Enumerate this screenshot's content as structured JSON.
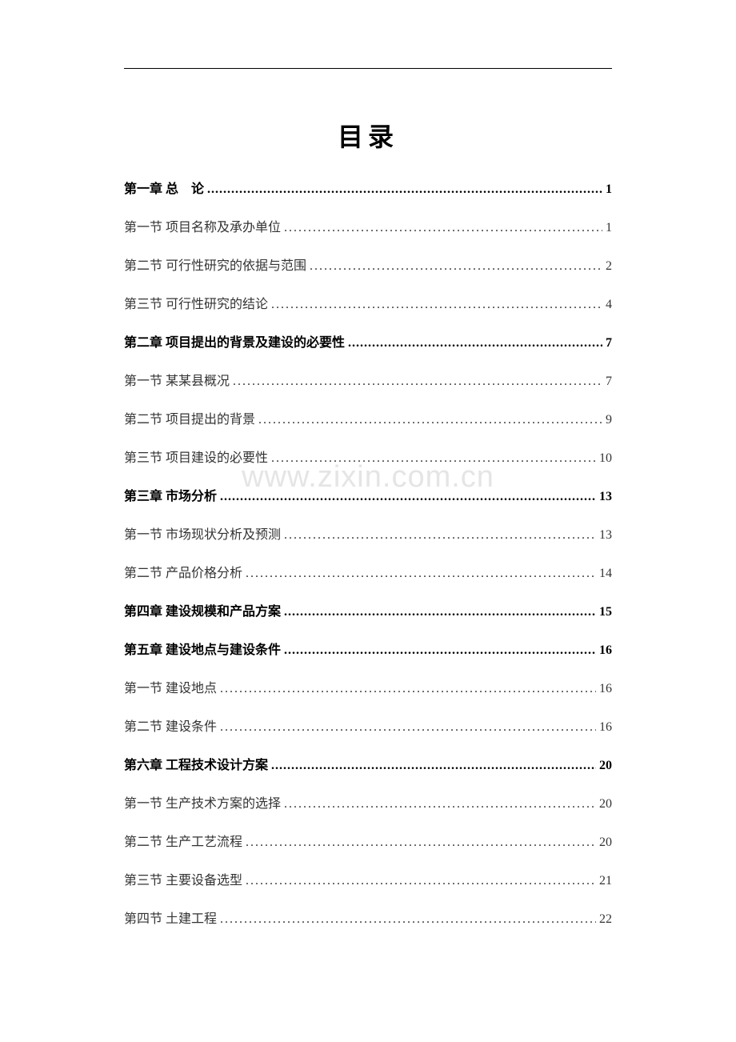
{
  "title": "目录",
  "watermark": "www.zixin.com.cn",
  "colors": {
    "background": "#ffffff",
    "text_chapter": "#000000",
    "text_section": "#333333",
    "watermark": "#e5e5e5",
    "rule": "#000000"
  },
  "typography": {
    "title_fontsize": 32,
    "entry_fontsize": 16,
    "font_family": "SimSun"
  },
  "entries": [
    {
      "label": "第一章  总　论",
      "page": "1",
      "level": "chapter"
    },
    {
      "label": "第一节  项目名称及承办单位",
      "page": "1",
      "level": "section"
    },
    {
      "label": "第二节  可行性研究的依据与范围",
      "page": "2",
      "level": "section"
    },
    {
      "label": "第三节  可行性研究的结论",
      "page": "4",
      "level": "section"
    },
    {
      "label": "第二章  项目提出的背景及建设的必要性",
      "page": "7",
      "level": "chapter"
    },
    {
      "label": "第一节  某某县概况",
      "page": "7",
      "level": "section"
    },
    {
      "label": "第二节  项目提出的背景",
      "page": "9",
      "level": "section"
    },
    {
      "label": "第三节  项目建设的必要性",
      "page": "10",
      "level": "section"
    },
    {
      "label": "第三章  市场分析",
      "page": "13",
      "level": "chapter"
    },
    {
      "label": "第一节  市场现状分析及预测",
      "page": "13",
      "level": "section"
    },
    {
      "label": "第二节  产品价格分析",
      "page": "14",
      "level": "section"
    },
    {
      "label": "第四章  建设规模和产品方案",
      "page": "15",
      "level": "chapter"
    },
    {
      "label": "第五章  建设地点与建设条件",
      "page": "16",
      "level": "chapter"
    },
    {
      "label": "第一节  建设地点",
      "page": "16",
      "level": "section"
    },
    {
      "label": "第二节  建设条件",
      "page": "16",
      "level": "section"
    },
    {
      "label": "第六章  工程技术设计方案",
      "page": "20",
      "level": "chapter"
    },
    {
      "label": "第一节  生产技术方案的选择",
      "page": "20",
      "level": "section"
    },
    {
      "label": "第二节  生产工艺流程",
      "page": "20",
      "level": "section"
    },
    {
      "label": "第三节  主要设备选型",
      "page": "21",
      "level": "section"
    },
    {
      "label": "第四节  土建工程",
      "page": "22",
      "level": "section"
    }
  ]
}
